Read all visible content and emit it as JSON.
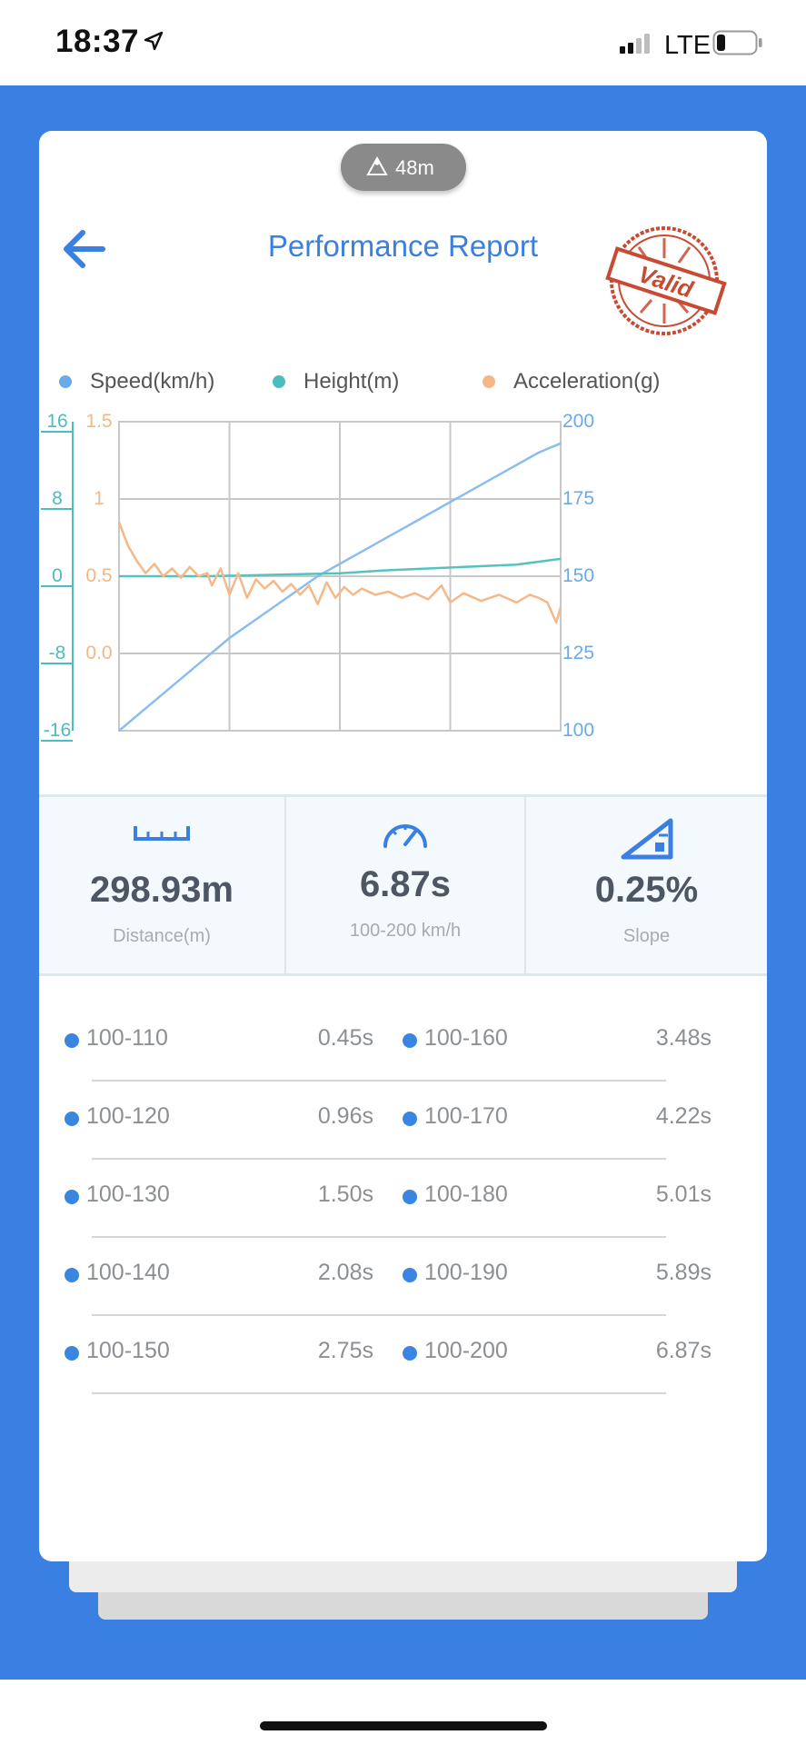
{
  "status_bar": {
    "time": "18:37",
    "network": "LTE"
  },
  "header": {
    "altitude": "48m",
    "title": "Performance Report",
    "stamp_text": "Valid"
  },
  "colors": {
    "brand_blue": "#3a7fe2",
    "speed": "#7eb7ee",
    "height": "#55c2c2",
    "acceleration": "#f5b889",
    "stamp_red": "#c94a32"
  },
  "legend": [
    {
      "label": "Speed(km/h)",
      "color": "#6aaae9"
    },
    {
      "label": "Height(m)",
      "color": "#4bbcc0"
    },
    {
      "label": "Acceleration(g)",
      "color": "#f3b886"
    }
  ],
  "chart_data": {
    "type": "line",
    "x": {
      "min": 0,
      "max": 1,
      "gridlines": 4
    },
    "axes": {
      "height": {
        "ticks": [
          "16",
          "8",
          "0",
          "-8",
          "-16"
        ],
        "range": [
          -16,
          16
        ],
        "color": "#4bbcc0"
      },
      "acceleration": {
        "ticks": [
          "1.5",
          "1",
          "0.5",
          "0.0"
        ],
        "range": [
          -0.5,
          1.5
        ],
        "color": "#f3b886"
      },
      "speed": {
        "ticks": [
          "200",
          "175",
          "150",
          "125",
          "100"
        ],
        "range": [
          100,
          200
        ],
        "color": "#6aaae9"
      }
    },
    "series": [
      {
        "name": "Speed(km/h)",
        "axis": "speed",
        "color": "#8bbdf0",
        "points": [
          [
            0,
            100
          ],
          [
            0.05,
            106
          ],
          [
            0.1,
            112
          ],
          [
            0.15,
            118
          ],
          [
            0.2,
            124
          ],
          [
            0.25,
            130
          ],
          [
            0.3,
            135
          ],
          [
            0.35,
            140
          ],
          [
            0.4,
            145
          ],
          [
            0.45,
            150
          ],
          [
            0.5,
            154
          ],
          [
            0.55,
            158
          ],
          [
            0.6,
            162
          ],
          [
            0.65,
            166
          ],
          [
            0.7,
            170
          ],
          [
            0.75,
            174
          ],
          [
            0.8,
            178
          ],
          [
            0.85,
            182
          ],
          [
            0.9,
            186
          ],
          [
            0.95,
            190
          ],
          [
            1,
            193
          ]
        ]
      },
      {
        "name": "Height(m)",
        "axis": "height",
        "color": "#55c2c2",
        "points": [
          [
            0,
            0
          ],
          [
            0.2,
            0
          ],
          [
            0.4,
            0.2
          ],
          [
            0.5,
            0.3
          ],
          [
            0.6,
            0.6
          ],
          [
            0.7,
            0.8
          ],
          [
            0.8,
            1.0
          ],
          [
            0.9,
            1.2
          ],
          [
            1,
            1.8
          ]
        ]
      },
      {
        "name": "Acceleration(g)",
        "axis": "acceleration",
        "color": "#f5b889",
        "points": [
          [
            0,
            0.85
          ],
          [
            0.02,
            0.7
          ],
          [
            0.04,
            0.6
          ],
          [
            0.06,
            0.52
          ],
          [
            0.08,
            0.58
          ],
          [
            0.1,
            0.5
          ],
          [
            0.12,
            0.55
          ],
          [
            0.14,
            0.49
          ],
          [
            0.16,
            0.56
          ],
          [
            0.18,
            0.5
          ],
          [
            0.2,
            0.52
          ],
          [
            0.21,
            0.44
          ],
          [
            0.23,
            0.55
          ],
          [
            0.25,
            0.38
          ],
          [
            0.27,
            0.52
          ],
          [
            0.29,
            0.36
          ],
          [
            0.31,
            0.48
          ],
          [
            0.33,
            0.42
          ],
          [
            0.35,
            0.47
          ],
          [
            0.37,
            0.4
          ],
          [
            0.39,
            0.45
          ],
          [
            0.41,
            0.38
          ],
          [
            0.43,
            0.44
          ],
          [
            0.45,
            0.32
          ],
          [
            0.47,
            0.46
          ],
          [
            0.49,
            0.36
          ],
          [
            0.51,
            0.43
          ],
          [
            0.53,
            0.38
          ],
          [
            0.55,
            0.42
          ],
          [
            0.58,
            0.38
          ],
          [
            0.61,
            0.4
          ],
          [
            0.64,
            0.36
          ],
          [
            0.67,
            0.39
          ],
          [
            0.7,
            0.35
          ],
          [
            0.73,
            0.44
          ],
          [
            0.75,
            0.33
          ],
          [
            0.78,
            0.39
          ],
          [
            0.82,
            0.34
          ],
          [
            0.86,
            0.38
          ],
          [
            0.9,
            0.33
          ],
          [
            0.93,
            0.38
          ],
          [
            0.95,
            0.36
          ],
          [
            0.97,
            0.33
          ],
          [
            0.99,
            0.2
          ],
          [
            1,
            0.3
          ]
        ]
      }
    ]
  },
  "stats": [
    {
      "value": "298.93m",
      "label": "Distance(m)",
      "icon": "ruler-icon"
    },
    {
      "value": "6.87s",
      "label": "100-200 km/h",
      "icon": "speedometer-icon"
    },
    {
      "value": "0.25%",
      "label": "Slope",
      "icon": "slope-icon"
    }
  ],
  "splits": [
    [
      {
        "range": "100-110",
        "time": "0.45s"
      },
      {
        "range": "100-160",
        "time": "3.48s"
      }
    ],
    [
      {
        "range": "100-120",
        "time": "0.96s"
      },
      {
        "range": "100-170",
        "time": "4.22s"
      }
    ],
    [
      {
        "range": "100-130",
        "time": "1.50s"
      },
      {
        "range": "100-180",
        "time": "5.01s"
      }
    ],
    [
      {
        "range": "100-140",
        "time": "2.08s"
      },
      {
        "range": "100-190",
        "time": "5.89s"
      }
    ],
    [
      {
        "range": "100-150",
        "time": "2.75s"
      },
      {
        "range": "100-200",
        "time": "6.87s"
      }
    ]
  ]
}
